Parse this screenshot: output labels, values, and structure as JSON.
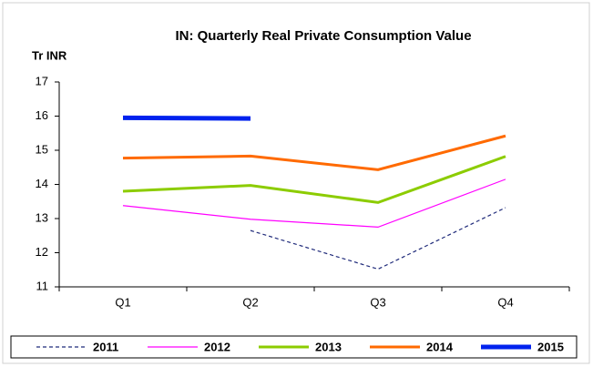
{
  "chart_data": {
    "type": "line",
    "title": "IN: Quarterly Real Private Consumption Value",
    "y_label": "Tr INR",
    "categories": [
      "Q1",
      "Q2",
      "Q3",
      "Q4"
    ],
    "series": [
      {
        "name": "2011",
        "color": "#1f2a7a",
        "style": "dashed",
        "values": [
          null,
          12.65,
          11.52,
          13.32
        ]
      },
      {
        "name": "2012",
        "color": "#ff00ff",
        "style": "thin",
        "values": [
          13.38,
          12.98,
          12.75,
          14.15
        ]
      },
      {
        "name": "2013",
        "color": "#8ccc00",
        "style": "medium",
        "values": [
          13.8,
          13.97,
          13.47,
          14.82
        ]
      },
      {
        "name": "2014",
        "color": "#ff6a00",
        "style": "medium",
        "values": [
          14.77,
          14.83,
          14.43,
          15.42
        ]
      },
      {
        "name": "2015",
        "color": "#0022ee",
        "style": "thick",
        "values": [
          15.95,
          15.93,
          null,
          null
        ]
      }
    ],
    "ylim": [
      11,
      17
    ],
    "yticks": [
      11,
      12,
      13,
      14,
      15,
      16,
      17
    ],
    "grid": false,
    "legend": "bottom"
  }
}
